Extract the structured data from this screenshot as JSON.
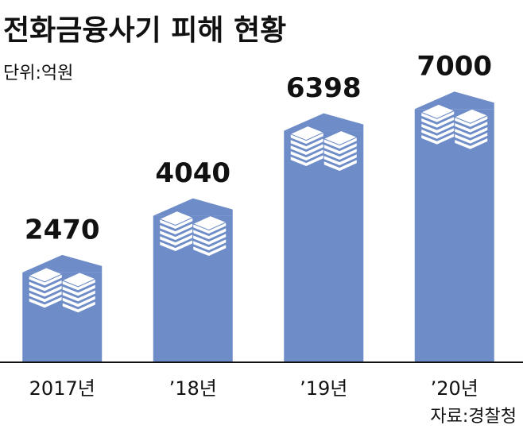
{
  "chart_data": {
    "type": "bar",
    "title": "전화금융사기 피해 현황",
    "unit": "단위:억원",
    "source": "자료:경찰청",
    "categories": [
      "2017년",
      "’18년",
      "’19년",
      "’20년"
    ],
    "values": [
      2470,
      4040,
      6398,
      7000
    ],
    "color": "#6e8cc8",
    "ylim": [
      0,
      7600
    ]
  }
}
